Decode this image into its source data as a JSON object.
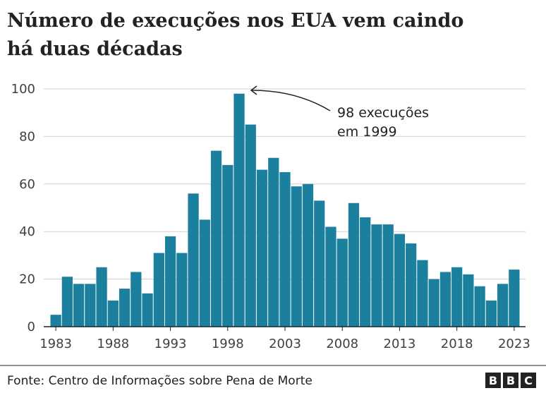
{
  "chart_data": {
    "type": "bar",
    "title_lines": [
      "Número de execuções nos EUA vem caindo",
      "há duas décadas"
    ],
    "annotation_lines": [
      "98 execuções",
      "em 1999"
    ],
    "source": "Fonte: Centro de Informações sobre Pena de Morte",
    "logo_letters": [
      "B",
      "B",
      "C"
    ],
    "x": [
      1983,
      1984,
      1985,
      1986,
      1987,
      1988,
      1989,
      1990,
      1991,
      1992,
      1993,
      1994,
      1995,
      1996,
      1997,
      1998,
      1999,
      2000,
      2001,
      2002,
      2003,
      2004,
      2005,
      2006,
      2007,
      2008,
      2009,
      2010,
      2011,
      2012,
      2013,
      2014,
      2015,
      2016,
      2017,
      2018,
      2019,
      2020,
      2021,
      2022,
      2023
    ],
    "values": [
      5,
      21,
      18,
      18,
      25,
      11,
      16,
      23,
      14,
      31,
      38,
      31,
      56,
      45,
      74,
      68,
      98,
      85,
      66,
      71,
      65,
      59,
      60,
      53,
      42,
      37,
      52,
      46,
      43,
      43,
      39,
      35,
      28,
      20,
      23,
      25,
      22,
      17,
      11,
      18,
      24
    ],
    "color": "#1b7f9e",
    "xlim": [
      1982.5,
      2023.5
    ],
    "xticks": [
      1983,
      1988,
      1993,
      1998,
      2003,
      2008,
      2013,
      2018,
      2023
    ],
    "ylim": [
      0,
      100
    ],
    "yticks": [
      0,
      20,
      40,
      60,
      80,
      100
    ],
    "grid": true
  }
}
